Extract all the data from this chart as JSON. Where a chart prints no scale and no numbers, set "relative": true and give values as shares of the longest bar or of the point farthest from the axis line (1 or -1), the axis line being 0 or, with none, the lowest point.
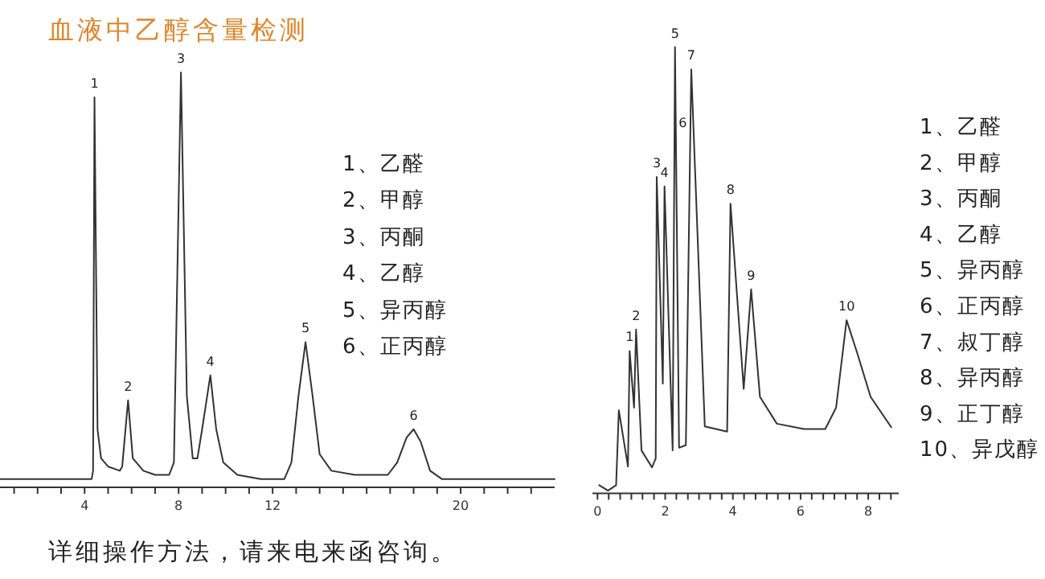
{
  "chart_data": [
    {
      "type": "line",
      "title": "血液中乙醇含量检测",
      "relative": true,
      "xlim": [
        0.4,
        24
      ],
      "xticks": [
        {
          "value": 1,
          "label": null
        },
        {
          "value": 2,
          "label": null
        },
        {
          "value": 3,
          "label": null
        },
        4,
        {
          "value": 5,
          "label": null
        },
        {
          "value": 6,
          "label": null
        },
        {
          "value": 7,
          "label": null
        },
        8,
        {
          "value": 9,
          "label": null
        },
        {
          "value": 10,
          "label": null
        },
        {
          "value": 11,
          "label": null
        },
        12,
        {
          "value": 13,
          "label": null
        },
        {
          "value": 14,
          "label": null
        },
        {
          "value": 15,
          "label": null
        },
        {
          "value": 16,
          "label": null
        },
        {
          "value": 17,
          "label": null
        },
        {
          "value": 18,
          "label": null
        },
        {
          "value": 19,
          "label": null
        },
        20,
        {
          "value": 21,
          "label": null
        },
        {
          "value": 22,
          "label": null
        },
        {
          "value": 23,
          "label": null
        }
      ],
      "series": [
        {
          "color": "#333333",
          "x": [
            0.4,
            4.3,
            4.36,
            4.42,
            4.55,
            4.7,
            5.0,
            5.5,
            5.6,
            5.85,
            6.05,
            6.5,
            7.0,
            7.6,
            7.8,
            8.1,
            8.35,
            8.6,
            8.8,
            9.0,
            9.35,
            9.6,
            9.9,
            10.5,
            11.5,
            12.5,
            12.8,
            13.1,
            13.4,
            13.7,
            14.0,
            14.5,
            15.5,
            16.9,
            17.3,
            17.7,
            18.0,
            18.3,
            18.7,
            19.2,
            24
          ],
          "values": [
            0.02,
            0.02,
            0.04,
            0.94,
            0.14,
            0.07,
            0.05,
            0.04,
            0.05,
            0.21,
            0.07,
            0.04,
            0.03,
            0.03,
            0.06,
            1.0,
            0.22,
            0.07,
            0.07,
            0.14,
            0.27,
            0.14,
            0.06,
            0.03,
            0.02,
            0.02,
            0.06,
            0.22,
            0.35,
            0.22,
            0.08,
            0.04,
            0.03,
            0.03,
            0.06,
            0.12,
            0.14,
            0.11,
            0.04,
            0.02,
            0.02
          ]
        }
      ],
      "annotations": [
        {
          "text": "1",
          "x": 4.42,
          "y": 0.94
        },
        {
          "text": "2",
          "x": 5.85,
          "y": 0.21
        },
        {
          "text": "3",
          "x": 8.1,
          "y": 1.0
        },
        {
          "text": "4",
          "x": 9.35,
          "y": 0.27
        },
        {
          "text": "5",
          "x": 13.4,
          "y": 0.35
        },
        {
          "text": "6",
          "x": 18.0,
          "y": 0.14
        },
        "1、乙醛",
        "2、甲醇",
        "3、丙酮",
        "4、乙醇",
        "5、异丙醇",
        "6、正丙醇",
        "详细操作方法，请来电来函咨询。"
      ]
    },
    {
      "type": "line",
      "relative": true,
      "xlim": [
        -0.15,
        8.9
      ],
      "xticks": [
        0,
        {
          "value": 0.33,
          "label": null
        },
        {
          "value": 0.67,
          "label": null
        },
        {
          "value": 1,
          "label": null
        },
        {
          "value": 1.33,
          "label": null
        },
        {
          "value": 1.67,
          "label": null
        },
        2,
        {
          "value": 2.33,
          "label": null
        },
        {
          "value": 2.67,
          "label": null
        },
        {
          "value": 3,
          "label": null
        },
        {
          "value": 3.33,
          "label": null
        },
        {
          "value": 3.67,
          "label": null
        },
        4,
        {
          "value": 4.33,
          "label": null
        },
        {
          "value": 4.67,
          "label": null
        },
        {
          "value": 5,
          "label": null
        },
        {
          "value": 5.33,
          "label": null
        },
        {
          "value": 5.67,
          "label": null
        },
        6,
        {
          "value": 6.33,
          "label": null
        },
        {
          "value": 6.67,
          "label": null
        },
        {
          "value": 7,
          "label": null
        },
        {
          "value": 7.33,
          "label": null
        },
        {
          "value": 7.67,
          "label": null
        },
        8,
        {
          "value": 8.33,
          "label": null
        },
        {
          "value": 8.67,
          "label": null
        }
      ],
      "series": [
        {
          "color": "#333333",
          "x": [
            0.05,
            0.31,
            0.55,
            0.63,
            0.9,
            0.95,
            1.08,
            1.14,
            1.3,
            1.61,
            1.72,
            1.75,
            1.93,
            1.98,
            2.22,
            2.29,
            2.41,
            2.61,
            2.77,
            3.17,
            3.83,
            3.93,
            4.32,
            4.54,
            4.8,
            5.3,
            6.1,
            6.73,
            7.05,
            7.36,
            7.68,
            8.07,
            8.68
          ],
          "values": [
            0.018,
            0.006,
            0.018,
            0.186,
            0.06,
            0.319,
            0.192,
            0.367,
            0.096,
            0.058,
            0.078,
            0.709,
            0.246,
            0.688,
            0.096,
            1.0,
            0.102,
            0.108,
            0.95,
            0.15,
            0.138,
            0.649,
            0.234,
            0.457,
            0.216,
            0.156,
            0.144,
            0.144,
            0.192,
            0.388,
            0.313,
            0.216,
            0.148
          ]
        }
      ],
      "annotations": [
        {
          "text": "1",
          "x": 0.95,
          "y": 0.319
        },
        {
          "text": "2",
          "x": 1.14,
          "y": 0.367
        },
        {
          "text": "3",
          "x": 1.75,
          "y": 0.709
        },
        {
          "text": "4",
          "x": 1.98,
          "y": 0.688
        },
        {
          "text": "5",
          "x": 2.29,
          "y": 1.0
        },
        {
          "text": "6",
          "x": 2.52,
          "y": 0.8
        },
        {
          "text": "7",
          "x": 2.77,
          "y": 0.95
        },
        {
          "text": "8",
          "x": 3.93,
          "y": 0.649
        },
        {
          "text": "9",
          "x": 4.54,
          "y": 0.457
        },
        {
          "text": "10",
          "x": 7.36,
          "y": 0.388
        },
        "1、乙醛",
        "2、甲醇",
        "3、丙酮",
        "4、乙醇",
        "5、异丙醇",
        "6、正丙醇",
        "7、叔丁醇",
        "8、异丙醇",
        "9、正丁醇",
        "10、异戊醇"
      ]
    }
  ]
}
